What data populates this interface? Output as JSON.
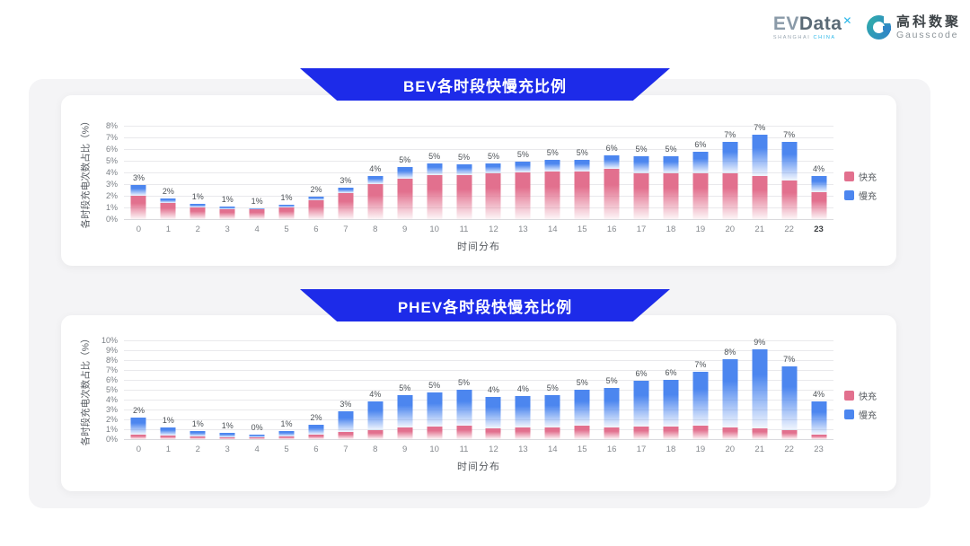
{
  "header": {
    "evdata_logo": {
      "ev": "EV",
      "data": "Data",
      "sup": "✕",
      "subtitle_left": "SHANGHAI",
      "subtitle_right": "CHINA"
    },
    "gausscode_logo": {
      "cn": "高科数聚",
      "en": "Gausscode"
    }
  },
  "colors": {
    "banner": "#1d2be9",
    "fast": "#E2708E",
    "slow": "#4C86EF",
    "panel": "#f4f4f6",
    "accent_cyan": "#29b6e8"
  },
  "chart_data": [
    {
      "type": "bar",
      "stacked": true,
      "title": "BEV各时段快慢充比例",
      "xlabel": "时间分布",
      "ylabel": "各时段充电次数占比（%）",
      "ylim": [
        0,
        8
      ],
      "ytick_step": 1,
      "ytick_suffix": "%",
      "grid": true,
      "legend_position": "right",
      "bold_last_xtick": true,
      "categories": [
        "0",
        "1",
        "2",
        "3",
        "4",
        "5",
        "6",
        "7",
        "8",
        "9",
        "10",
        "11",
        "12",
        "13",
        "14",
        "15",
        "16",
        "17",
        "18",
        "19",
        "20",
        "21",
        "22",
        "23"
      ],
      "series": [
        {
          "name": "快充",
          "color": "#E2708E",
          "values": [
            2.0,
            1.4,
            1.0,
            0.85,
            0.85,
            1.0,
            1.6,
            2.2,
            3.0,
            3.5,
            3.8,
            3.8,
            3.9,
            4.0,
            4.1,
            4.1,
            4.3,
            3.9,
            3.9,
            3.9,
            3.9,
            3.7,
            3.3,
            2.3
          ]
        },
        {
          "name": "慢充",
          "color": "#4C86EF",
          "values": [
            0.9,
            0.4,
            0.3,
            0.25,
            0.1,
            0.2,
            0.3,
            0.5,
            0.7,
            1.0,
            1.0,
            0.9,
            0.9,
            0.9,
            1.0,
            1.0,
            1.2,
            1.5,
            1.5,
            1.9,
            2.7,
            3.5,
            3.3,
            1.4
          ]
        }
      ],
      "total_labels": [
        "3%",
        "2%",
        "1%",
        "1%",
        "1%",
        "1%",
        "2%",
        "3%",
        "4%",
        "5%",
        "5%",
        "5%",
        "5%",
        "5%",
        "5%",
        "5%",
        "6%",
        "5%",
        "5%",
        "6%",
        "7%",
        "7%",
        "7%",
        "4%"
      ]
    },
    {
      "type": "bar",
      "stacked": true,
      "title": "PHEV各时段快慢充比例",
      "xlabel": "时间分布",
      "ylabel": "各时段充电次数占比（%）",
      "ylim": [
        0,
        10
      ],
      "ytick_step": 1,
      "ytick_suffix": "%",
      "grid": true,
      "legend_position": "right",
      "bold_last_xtick": false,
      "categories": [
        "0",
        "1",
        "2",
        "3",
        "4",
        "5",
        "6",
        "7",
        "8",
        "9",
        "10",
        "11",
        "12",
        "13",
        "14",
        "15",
        "16",
        "17",
        "18",
        "19",
        "20",
        "21",
        "22",
        "23"
      ],
      "series": [
        {
          "name": "快充",
          "color": "#E2708E",
          "values": [
            0.45,
            0.35,
            0.25,
            0.2,
            0.15,
            0.25,
            0.5,
            0.75,
            0.9,
            1.2,
            1.3,
            1.4,
            1.1,
            1.2,
            1.2,
            1.4,
            1.2,
            1.3,
            1.3,
            1.4,
            1.2,
            1.1,
            0.9,
            0.5
          ]
        },
        {
          "name": "慢充",
          "color": "#4C86EF",
          "values": [
            1.75,
            0.85,
            0.55,
            0.4,
            0.3,
            0.6,
            1.0,
            2.05,
            2.9,
            3.3,
            3.4,
            3.6,
            3.2,
            3.2,
            3.3,
            3.6,
            4.0,
            4.6,
            4.7,
            5.4,
            6.9,
            8.0,
            6.5,
            3.3
          ]
        }
      ],
      "total_labels": [
        "2%",
        "1%",
        "1%",
        "1%",
        "0%",
        "1%",
        "2%",
        "3%",
        "4%",
        "5%",
        "5%",
        "5%",
        "4%",
        "4%",
        "5%",
        "5%",
        "5%",
        "6%",
        "6%",
        "7%",
        "8%",
        "9%",
        "7%",
        "4%"
      ]
    }
  ]
}
